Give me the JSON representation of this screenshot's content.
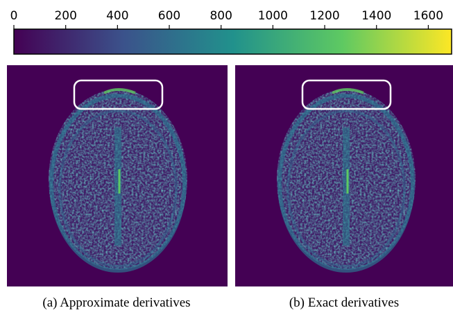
{
  "colorbar": {
    "lim": [
      0,
      1690
    ],
    "ticks": [
      0,
      200,
      400,
      600,
      800,
      1000,
      1200,
      1400,
      1600
    ],
    "colormap": [
      "#440154",
      "#3b528b",
      "#21918c",
      "#5ec962",
      "#fde725"
    ]
  },
  "panels": [
    {
      "caption": "(a) Approximate derivatives"
    },
    {
      "caption": "(b) Exact derivatives"
    }
  ]
}
